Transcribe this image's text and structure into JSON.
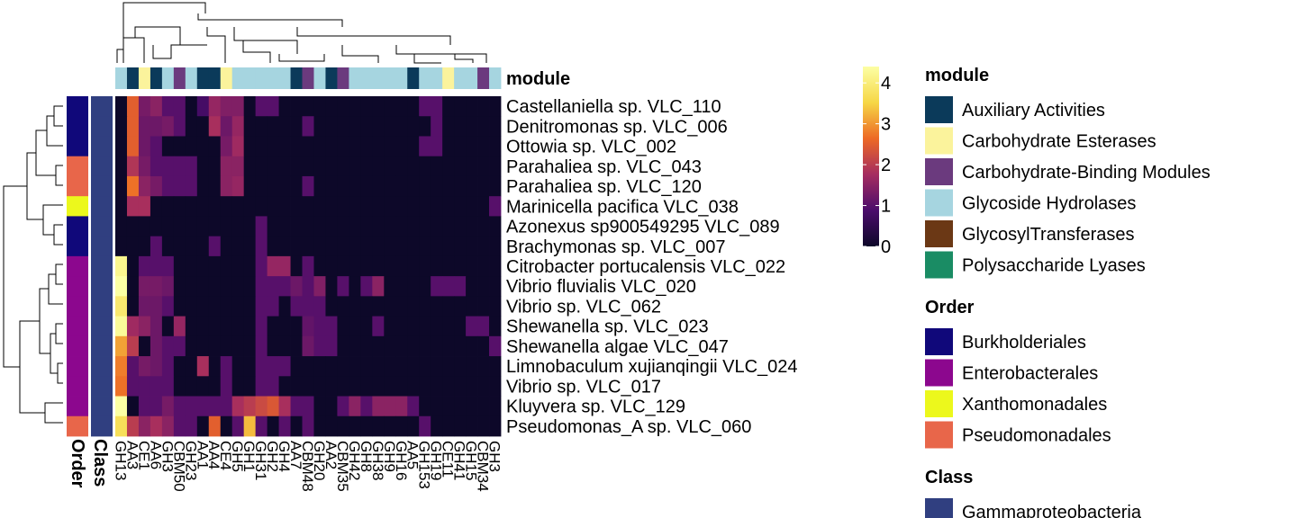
{
  "chart_data": {
    "type": "heatmap",
    "value_range": [
      0,
      4.4
    ],
    "color_scale": {
      "ticks": [
        0,
        1,
        2,
        3,
        4
      ],
      "stops": [
        "#0d0829",
        "#4b0c6b",
        "#a52c60",
        "#ed6925",
        "#f6d746",
        "#fcffa4"
      ]
    },
    "column_annotation": {
      "title": "module",
      "values": [
        "GH",
        "AA",
        "CE",
        "AA",
        "GH",
        "CBM",
        "GH",
        "AA",
        "AA",
        "CE",
        "GH",
        "GH",
        "GH",
        "GH",
        "GH",
        "AA",
        "CBM",
        "GH",
        "AA",
        "CBM",
        "GH",
        "GH",
        "GH",
        "GH",
        "GH",
        "AA",
        "GH",
        "GH",
        "CE",
        "GH",
        "GH",
        "CBM",
        "GH"
      ]
    },
    "columns": [
      "GH13",
      "AA3",
      "CE1",
      "AA6",
      "GH3",
      "CBM50",
      "GH23",
      "AA1",
      "AA4",
      "CE4",
      "GH5",
      "GH1",
      "GH31",
      "GH2",
      "GH4",
      "AA7",
      "CBM48",
      "GH20",
      "AA2",
      "CBM35",
      "GH42",
      "GH8",
      "GH38",
      "GH9",
      "GH16",
      "AA5",
      "GH153",
      "GH19",
      "CE11",
      "GH41",
      "GH15",
      "CBM34",
      "GH3"
    ],
    "rows": [
      {
        "name": "Castellaniella sp. VLC_110",
        "order": "Burkholderiales",
        "class": "Gammaproteobacteria",
        "values": [
          0,
          2.5,
          1.3,
          1.5,
          1,
          1,
          0,
          0.8,
          1.6,
          1.4,
          1.4,
          0,
          1,
          1,
          0,
          0,
          0,
          0,
          0,
          0,
          0,
          0,
          0,
          0,
          0,
          0,
          1,
          1,
          0,
          0,
          0,
          0,
          0
        ]
      },
      {
        "name": "Denitromonas sp. VLC_006",
        "order": "Burkholderiales",
        "class": "Gammaproteobacteria",
        "values": [
          0,
          2.5,
          1.2,
          1.2,
          1.3,
          1,
          0,
          0,
          1.8,
          1.2,
          1.6,
          0,
          0,
          0,
          0,
          0,
          1,
          0,
          0,
          0,
          0,
          0,
          0,
          0,
          0,
          0,
          0,
          1,
          0,
          0,
          0,
          0,
          0
        ]
      },
      {
        "name": "Ottowia sp. VLC_002",
        "order": "Burkholderiales",
        "class": "Gammaproteobacteria",
        "values": [
          0,
          2.5,
          1.2,
          1,
          0,
          0,
          0,
          0,
          0,
          1.3,
          1.7,
          0,
          0,
          0,
          0,
          0,
          0,
          0,
          0,
          0,
          0,
          0,
          0,
          0,
          0,
          0,
          1,
          1,
          0,
          0,
          0,
          0,
          0
        ]
      },
      {
        "name": "Parahaliea sp. VLC_043",
        "order": "Pseudomonadales",
        "class": "Gammaproteobacteria",
        "values": [
          0,
          1.9,
          1.3,
          1,
          1,
          1,
          1,
          0,
          0,
          1.5,
          1.5,
          0,
          0,
          0,
          0,
          0,
          0,
          0,
          0,
          0,
          0,
          0,
          0,
          0,
          0,
          0,
          0,
          0,
          0,
          0,
          0,
          0,
          0
        ]
      },
      {
        "name": "Parahaliea sp. VLC_120",
        "order": "Pseudomonadales",
        "class": "Gammaproteobacteria",
        "values": [
          0,
          2.7,
          1.5,
          1.3,
          1,
          1,
          1,
          0,
          0,
          1.5,
          1.6,
          0,
          0,
          0,
          0,
          0,
          1,
          0,
          0,
          0,
          0,
          0,
          0,
          0,
          0,
          0,
          0,
          0,
          0,
          0,
          0,
          0,
          0
        ]
      },
      {
        "name": "Marinicella pacifica VLC_038",
        "order": "Xanthomonadales",
        "class": "Gammaproteobacteria",
        "values": [
          0,
          1.8,
          1.8,
          0,
          0,
          0,
          0,
          0,
          0,
          0,
          0,
          0,
          0,
          0,
          0,
          0,
          0,
          0,
          0,
          0,
          0,
          0,
          0,
          0,
          0,
          0,
          0,
          0,
          0,
          0,
          0,
          0,
          1
        ]
      },
      {
        "name": "Azonexus sp900549295 VLC_089",
        "order": "Burkholderiales",
        "class": "Gammaproteobacteria",
        "values": [
          0,
          0,
          0,
          0,
          0,
          0,
          0,
          0,
          0,
          0,
          0,
          0,
          1,
          0,
          0,
          0,
          0,
          0,
          0,
          0,
          0,
          0,
          0,
          0,
          0,
          0,
          0,
          0,
          0,
          0,
          0,
          0,
          0
        ]
      },
      {
        "name": "Brachymonas sp. VLC_007",
        "order": "Burkholderiales",
        "class": "Gammaproteobacteria",
        "values": [
          0,
          0,
          0,
          1,
          0,
          0,
          0,
          0,
          1,
          0,
          0,
          0,
          1,
          0,
          0,
          0,
          0,
          0,
          0,
          0,
          0,
          0,
          0,
          0,
          0,
          0,
          0,
          0,
          0,
          0,
          0,
          0,
          0
        ]
      },
      {
        "name": "Citrobacter portucalensis VLC_022",
        "order": "Enterobacterales",
        "class": "Gammaproteobacteria",
        "values": [
          4.2,
          0,
          1,
          1,
          1,
          0,
          0,
          0,
          0,
          0,
          0,
          0,
          1,
          1.6,
          1.6,
          0,
          1,
          0,
          0,
          0,
          0,
          0,
          0,
          0,
          0,
          0,
          0,
          0,
          0,
          0,
          0,
          0,
          0
        ]
      },
      {
        "name": "Vibrio fluvialis VLC_020",
        "order": "Enterobacterales",
        "class": "Gammaproteobacteria",
        "values": [
          4.4,
          0,
          1.3,
          1.3,
          1.2,
          0,
          0,
          0,
          0,
          0,
          0,
          0,
          1,
          1,
          1,
          1.2,
          1,
          1.4,
          0,
          1,
          0,
          1,
          1.5,
          0,
          0,
          0,
          0,
          1,
          1,
          1,
          0,
          0,
          0
        ]
      },
      {
        "name": "Vibrio sp. VLC_062",
        "order": "Enterobacterales",
        "class": "Gammaproteobacteria",
        "values": [
          3.9,
          0,
          1.2,
          1.2,
          1,
          0,
          0,
          0,
          0,
          0,
          0,
          0,
          1,
          1,
          0,
          1,
          1,
          1,
          0,
          0,
          0,
          0,
          0,
          0,
          0,
          0,
          0,
          0,
          0,
          0,
          0,
          0,
          0
        ]
      },
      {
        "name": "Shewanella sp. VLC_023",
        "order": "Enterobacterales",
        "class": "Gammaproteobacteria",
        "values": [
          4.3,
          1.7,
          1.5,
          1.2,
          0,
          1.6,
          0,
          0,
          0,
          0,
          0,
          0,
          1,
          0,
          0,
          0,
          1.1,
          1,
          1,
          0,
          0,
          0,
          1,
          0,
          0,
          0,
          0,
          0,
          0,
          0,
          1,
          1,
          0
        ]
      },
      {
        "name": "Shewanella algae VLC_047",
        "order": "Enterobacterales",
        "class": "Gammaproteobacteria",
        "values": [
          3.1,
          2,
          0,
          1.2,
          1,
          1,
          0,
          0,
          0,
          0,
          0,
          0,
          1,
          0,
          0,
          0,
          1.2,
          1,
          1,
          0,
          0,
          0,
          0,
          0,
          0,
          0,
          0,
          0,
          0,
          0,
          0,
          0,
          1
        ]
      },
      {
        "name": "Limnobaculum xujianqingii VLC_024",
        "order": "Enterobacterales",
        "class": "Gammaproteobacteria",
        "values": [
          2.8,
          1,
          1.3,
          1.2,
          1,
          0,
          0,
          1.8,
          0,
          1,
          0,
          0,
          1,
          1,
          1,
          0,
          0,
          0,
          0,
          0,
          0,
          0,
          0,
          0,
          0,
          0,
          0,
          0,
          0,
          0,
          0,
          0,
          0
        ]
      },
      {
        "name": "Vibrio sp. VLC_017",
        "order": "Enterobacterales",
        "class": "Gammaproteobacteria",
        "values": [
          2.7,
          1,
          1,
          1,
          1,
          0,
          0,
          0,
          0,
          1,
          0,
          0,
          1,
          1,
          0,
          0,
          0,
          0,
          0,
          0,
          0,
          0,
          0,
          0,
          0,
          0,
          0,
          0,
          0,
          0,
          0,
          0,
          0
        ]
      },
      {
        "name": "Kluyvera sp. VLC_129",
        "order": "Enterobacterales",
        "class": "Gammaproteobacteria",
        "values": [
          4.4,
          0,
          1,
          1,
          1.3,
          1,
          1,
          1,
          1,
          1,
          1.8,
          2,
          2.2,
          2.4,
          1.8,
          1,
          1,
          0,
          0,
          1,
          1.5,
          1,
          1.5,
          1.5,
          1.5,
          1,
          0,
          0,
          0,
          0,
          0,
          0,
          0
        ]
      },
      {
        "name": "Pseudomonas_A sp. VLC_060",
        "order": "Pseudomonadales",
        "class": "Gammaproteobacteria",
        "values": [
          3.7,
          2,
          1.5,
          1.8,
          1.5,
          1,
          1,
          0,
          2.5,
          0,
          1,
          3.3,
          1,
          0,
          1,
          0,
          1,
          0,
          0,
          0,
          0,
          0,
          0,
          0,
          0,
          0,
          1,
          0,
          0,
          0,
          0,
          0,
          0
        ]
      }
    ],
    "legends": {
      "module": {
        "title": "module",
        "items": [
          {
            "key": "AA",
            "label": "Auxiliary Activities",
            "color": "#0b3a5a"
          },
          {
            "key": "CE",
            "label": "Carbohydrate Esterases",
            "color": "#fbf39c"
          },
          {
            "key": "CBM",
            "label": "Carbohydrate-Binding Modules",
            "color": "#6b3a7e"
          },
          {
            "key": "GH",
            "label": "Glycoside Hydrolases",
            "color": "#a6d5e0"
          },
          {
            "key": "GT",
            "label": "GlycosylTransferases",
            "color": "#6b3815"
          },
          {
            "key": "PL",
            "label": "Polysaccharide Lyases",
            "color": "#1a8c64"
          }
        ]
      },
      "order": {
        "title": "Order",
        "items": [
          {
            "label": "Burkholderiales",
            "color": "#10087a"
          },
          {
            "label": "Enterobacterales",
            "color": "#8c078e"
          },
          {
            "label": "Xanthomonadales",
            "color": "#ecf81c"
          },
          {
            "label": "Pseudomonadales",
            "color": "#e8664a"
          }
        ]
      },
      "class": {
        "title": "Class",
        "items": [
          {
            "label": "Gammaproteobacteria",
            "color": "#303f80"
          }
        ]
      }
    },
    "row_annotation_labels": [
      "Order",
      "Class"
    ]
  }
}
